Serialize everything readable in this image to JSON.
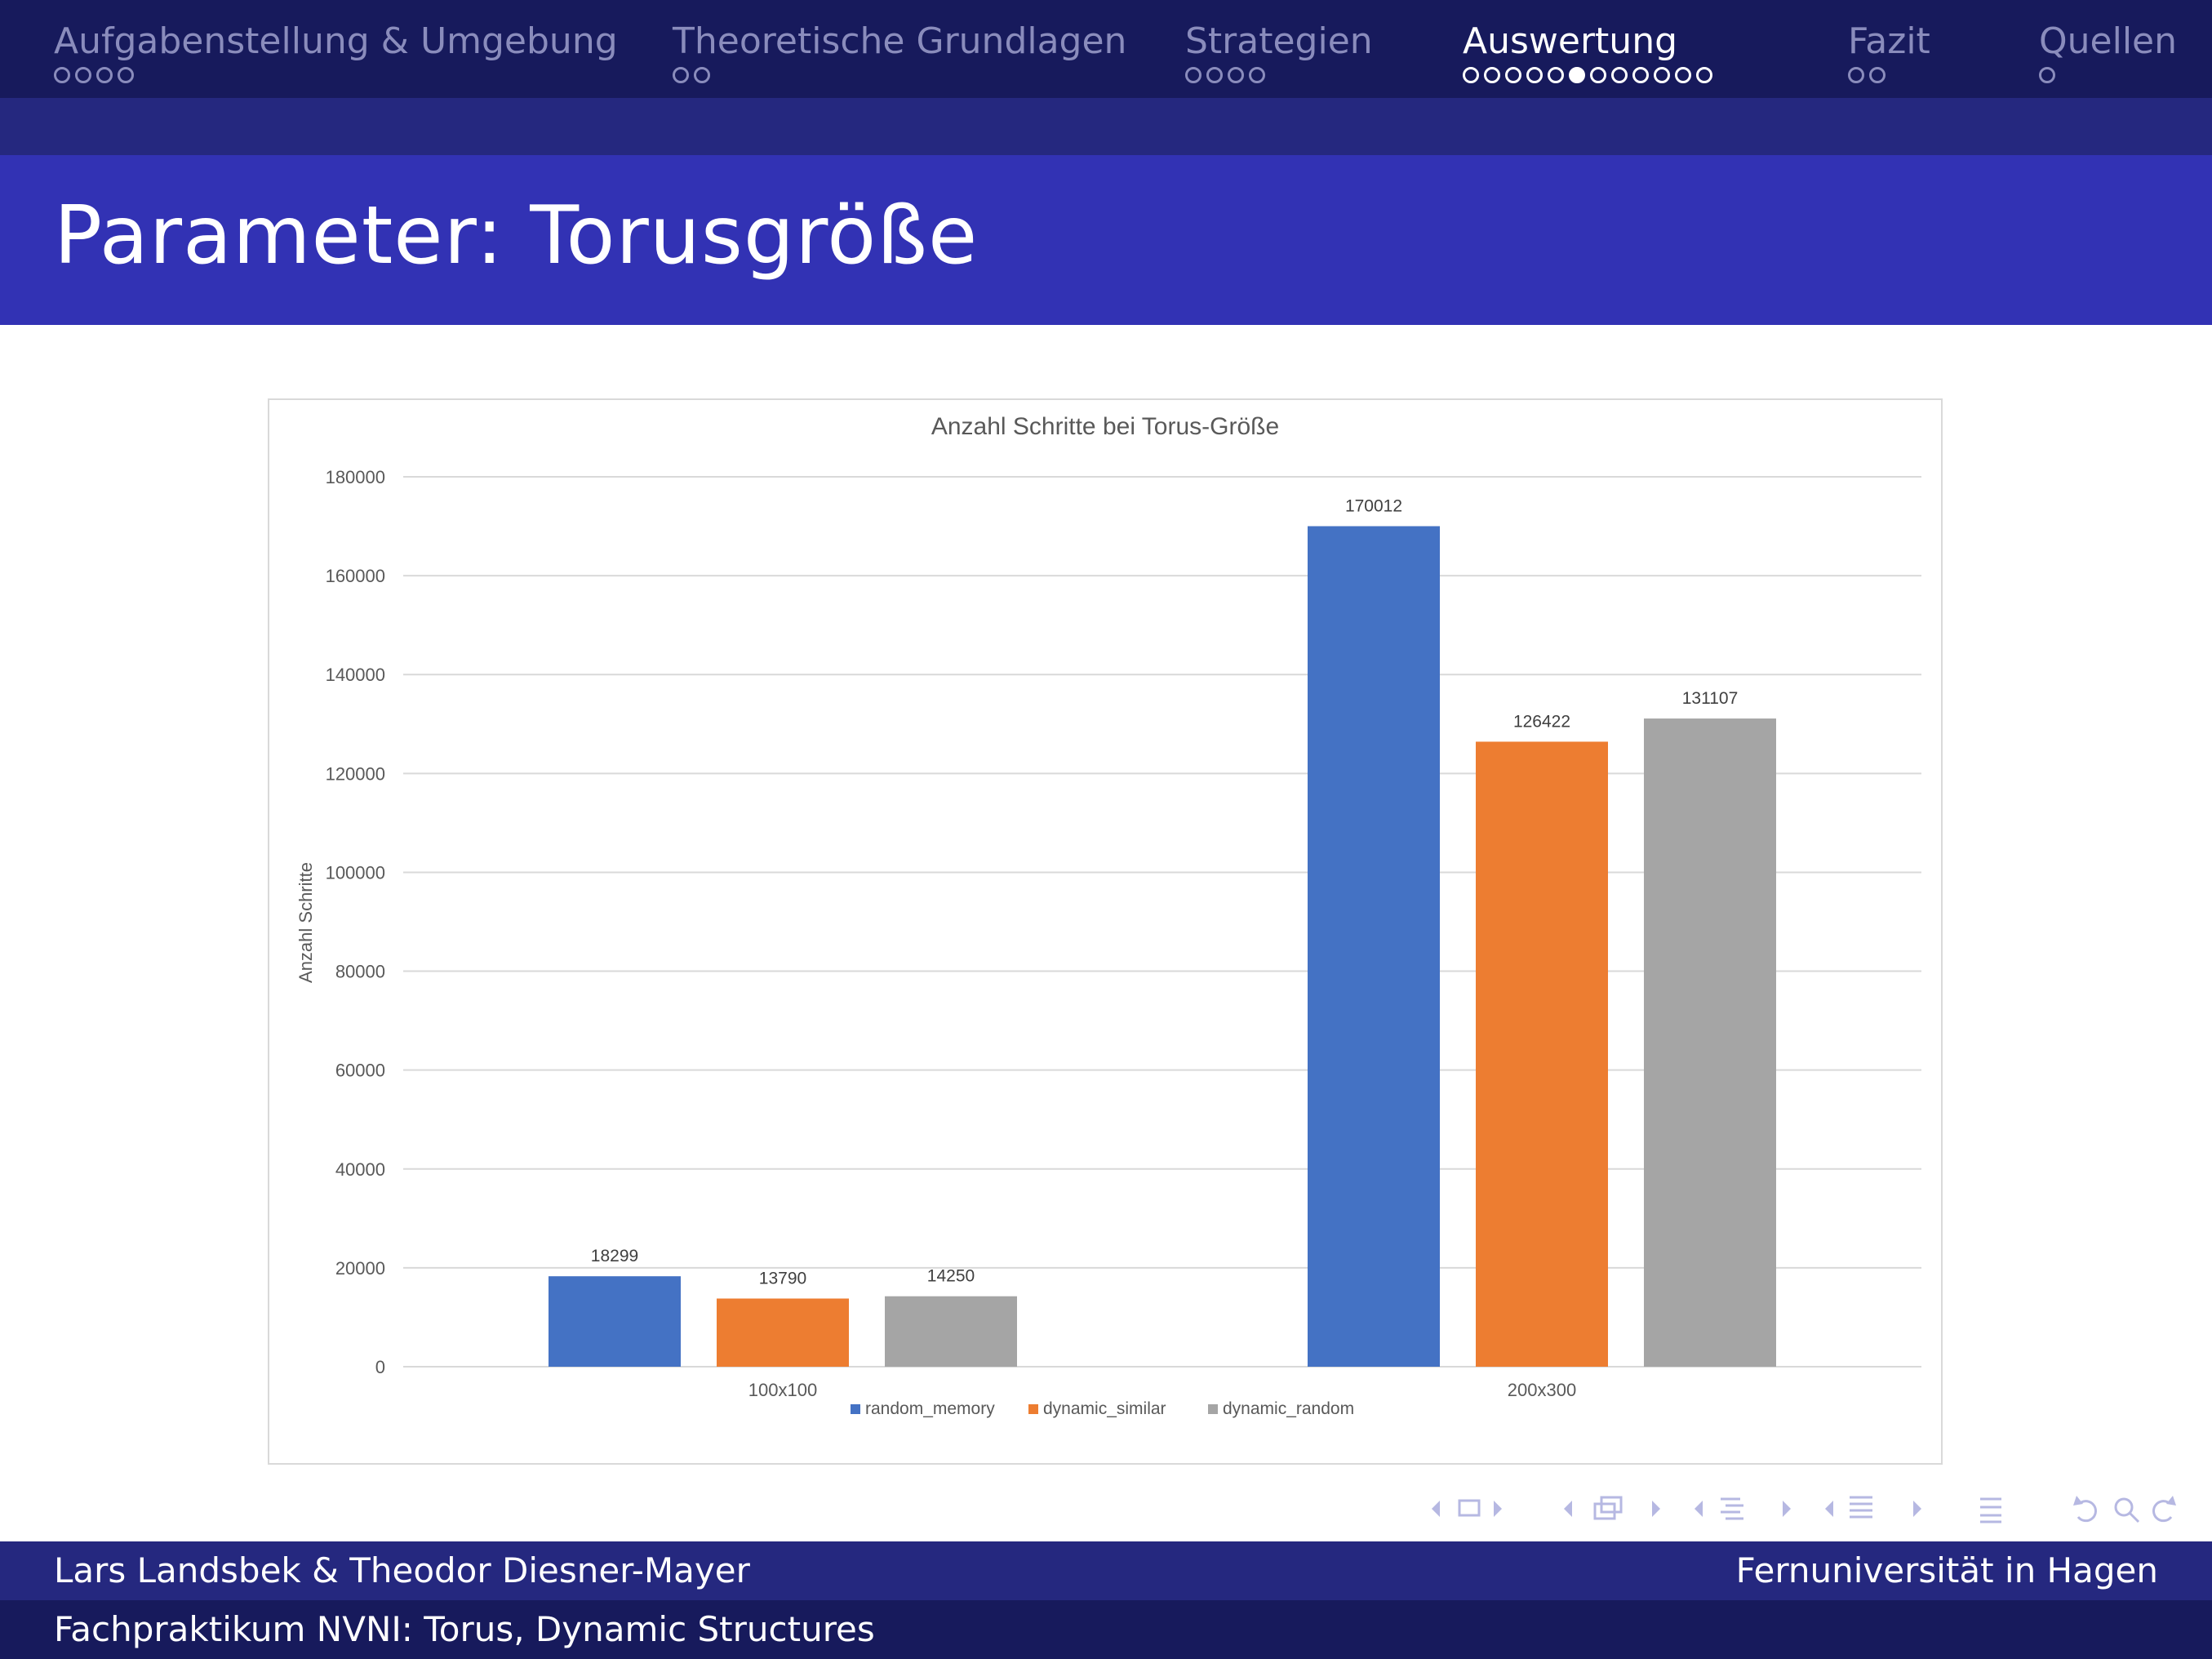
{
  "nav": {
    "sections": [
      {
        "title": "Aufgabenstellung & Umgebung",
        "dots": 4,
        "current": -1
      },
      {
        "title": "Theoretische Grundlagen",
        "dots": 2,
        "current": -1
      },
      {
        "title": "Strategien",
        "dots": 4,
        "current": -1
      },
      {
        "title": "Auswertung",
        "dots": 12,
        "current": 5
      },
      {
        "title": "Fazit",
        "dots": 2,
        "current": -1
      },
      {
        "title": "Quellen",
        "dots": 1,
        "current": -1
      }
    ]
  },
  "frame": {
    "title": "Parameter: Torusgröße"
  },
  "chart_data": {
    "type": "bar",
    "title": "Anzahl Schritte bei Torus-Größe",
    "xlabel": "",
    "ylabel": "Anzahl Schritte",
    "categories": [
      "100x100",
      "200x300"
    ],
    "series": [
      {
        "name": "random_memory",
        "values": [
          18299,
          170012
        ],
        "color": "#4472c4"
      },
      {
        "name": "dynamic_similar",
        "values": [
          13790,
          126422
        ],
        "color": "#ed7d31"
      },
      {
        "name": "dynamic_random",
        "values": [
          14250,
          131107
        ],
        "color": "#a5a5a5"
      }
    ],
    "ylim": [
      0,
      180000
    ],
    "yticks": [
      0,
      20000,
      40000,
      60000,
      80000,
      100000,
      120000,
      140000,
      160000,
      180000
    ],
    "grid": true,
    "data_labels": true,
    "legend": "bottom"
  },
  "footer": {
    "authors": "Lars Landsbek & Theodor Diesner-Mayer",
    "institution": "Fernuniversität in Hagen",
    "course": "Fachpraktikum NVNI: Torus, Dynamic Structures"
  },
  "colors": {
    "nav_bg": "#171a5c",
    "subbar_bg": "#25287f",
    "title_bg": "#3232b4",
    "inactive_text": "#8a8cbc",
    "navsym": "#b6b8e2"
  }
}
